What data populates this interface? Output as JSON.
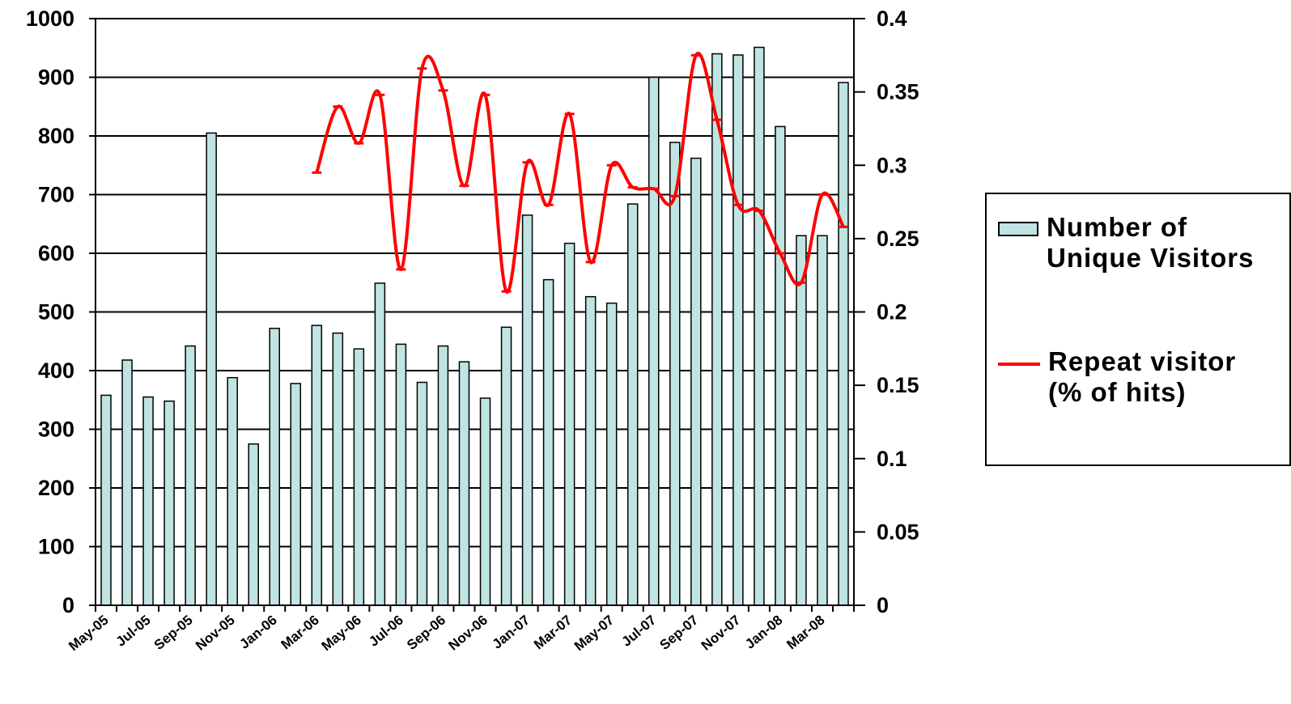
{
  "chart_data": {
    "type": "bar",
    "categories": [
      "May-05",
      "Jun-05",
      "Jul-05",
      "Aug-05",
      "Sep-05",
      "Oct-05",
      "Nov-05",
      "Dec-05",
      "Jan-06",
      "Feb-06",
      "Mar-06",
      "Apr-06",
      "May-06",
      "Jun-06",
      "Jul-06",
      "Aug-06",
      "Sep-06",
      "Oct-06",
      "Nov-06",
      "Dec-06",
      "Jan-07",
      "Feb-07",
      "Mar-07",
      "Apr-07",
      "May-07",
      "Jun-07",
      "Jul-07",
      "Aug-07",
      "Sep-07",
      "Oct-07",
      "Nov-07",
      "Dec-07",
      "Jan-08",
      "Feb-08",
      "Mar-08",
      "Apr-08"
    ],
    "tick_labels": [
      "May-05",
      "Jul-05",
      "Sep-05",
      "Nov-05",
      "Jan-06",
      "Mar-06",
      "May-06",
      "Jul-06",
      "Sep-06",
      "Nov-06",
      "Jan-07",
      "Mar-07",
      "May-07",
      "Jul-07",
      "Sep-07",
      "Nov-07",
      "Jan-08",
      "Mar-08"
    ],
    "series": [
      {
        "name": "Number of Unique Visitors",
        "type": "bar",
        "axis": "left",
        "color": "#bfe4e2",
        "values": [
          358,
          418,
          355,
          348,
          442,
          805,
          388,
          275,
          472,
          378,
          477,
          464,
          437,
          549,
          445,
          380,
          442,
          415,
          353,
          474,
          665,
          555,
          617,
          526,
          515,
          684,
          900,
          789,
          762,
          940,
          938,
          951,
          816,
          630,
          630,
          891
        ]
      },
      {
        "name": "Repeat visitor (% of hits)",
        "type": "line",
        "axis": "right",
        "color": "#ff0000",
        "values": [
          null,
          null,
          null,
          null,
          null,
          null,
          null,
          null,
          null,
          null,
          0.295,
          0.34,
          0.315,
          0.348,
          0.229,
          0.366,
          0.351,
          0.286,
          0.348,
          0.214,
          0.302,
          0.273,
          0.335,
          0.234,
          0.3,
          0.285,
          0.284,
          0.279,
          0.375,
          0.331,
          0.273,
          0.269,
          0.24,
          0.22,
          0.28,
          0.258
        ]
      }
    ],
    "y_left": {
      "range": [
        0,
        1000
      ],
      "ticks": [
        "0",
        "100",
        "200",
        "300",
        "400",
        "500",
        "600",
        "700",
        "800",
        "900",
        "1000"
      ]
    },
    "y_right": {
      "range": [
        0,
        0.4
      ],
      "ticks": [
        "0",
        "0.05",
        "0.1",
        "0.15",
        "0.2",
        "0.25",
        "0.3",
        "0.35",
        "0.4"
      ]
    },
    "grid": "horizontal",
    "legend": {
      "position": "right",
      "entries": [
        "Number of Unique Visitors",
        "Repeat visitor (% of hits)"
      ]
    },
    "title": "",
    "xlabel": "",
    "ylabel": ""
  }
}
